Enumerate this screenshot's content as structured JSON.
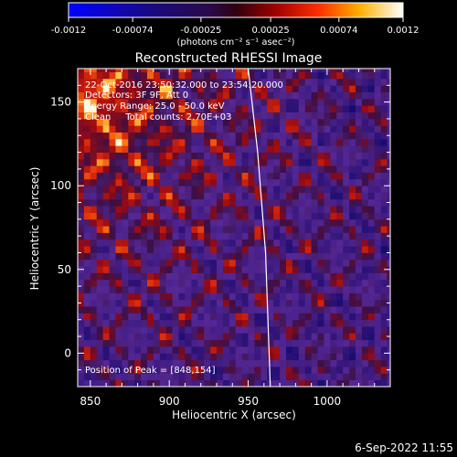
{
  "colorbar": {
    "tick_labels": [
      "-0.0012",
      "-0.00074",
      "-0.00025",
      "0.00025",
      "0.00074",
      "0.0012"
    ],
    "range": [
      -0.0012,
      0.0012
    ],
    "unit_label": "(photons cm⁻² s⁻¹ asec⁻²)"
  },
  "chart_data": {
    "type": "heatmap",
    "title": "Reconstructed RHESSI Image",
    "xlabel": "Heliocentric X (arcsec)",
    "ylabel": "Heliocentric Y (arcsec)",
    "xlim": [
      842,
      1040
    ],
    "ylim": [
      -20,
      170
    ],
    "xticks": [
      850,
      900,
      950,
      1000
    ],
    "yticks": [
      0,
      50,
      100,
      150
    ],
    "annotations": [
      "22-Oct-2016 23:50:32.000 to 23:54:20.000",
      "Detectors: 3F 9F, Att 0",
      "Energy Range: 25.0 - 50.0 keV",
      "Clean     Total counts: 2.70E+03"
    ],
    "peak_label": "Position of Peak = [848,154]",
    "limb_line": [
      [
        950,
        170
      ],
      [
        956,
        120
      ],
      [
        961,
        60
      ],
      [
        964,
        -20
      ]
    ],
    "colormap": "rhessi (blue-purple-red-yellow-white)",
    "value_range": [
      -0.0012,
      0.0012
    ]
  },
  "footer": {
    "timestamp": "6-Sep-2022 11:55"
  }
}
